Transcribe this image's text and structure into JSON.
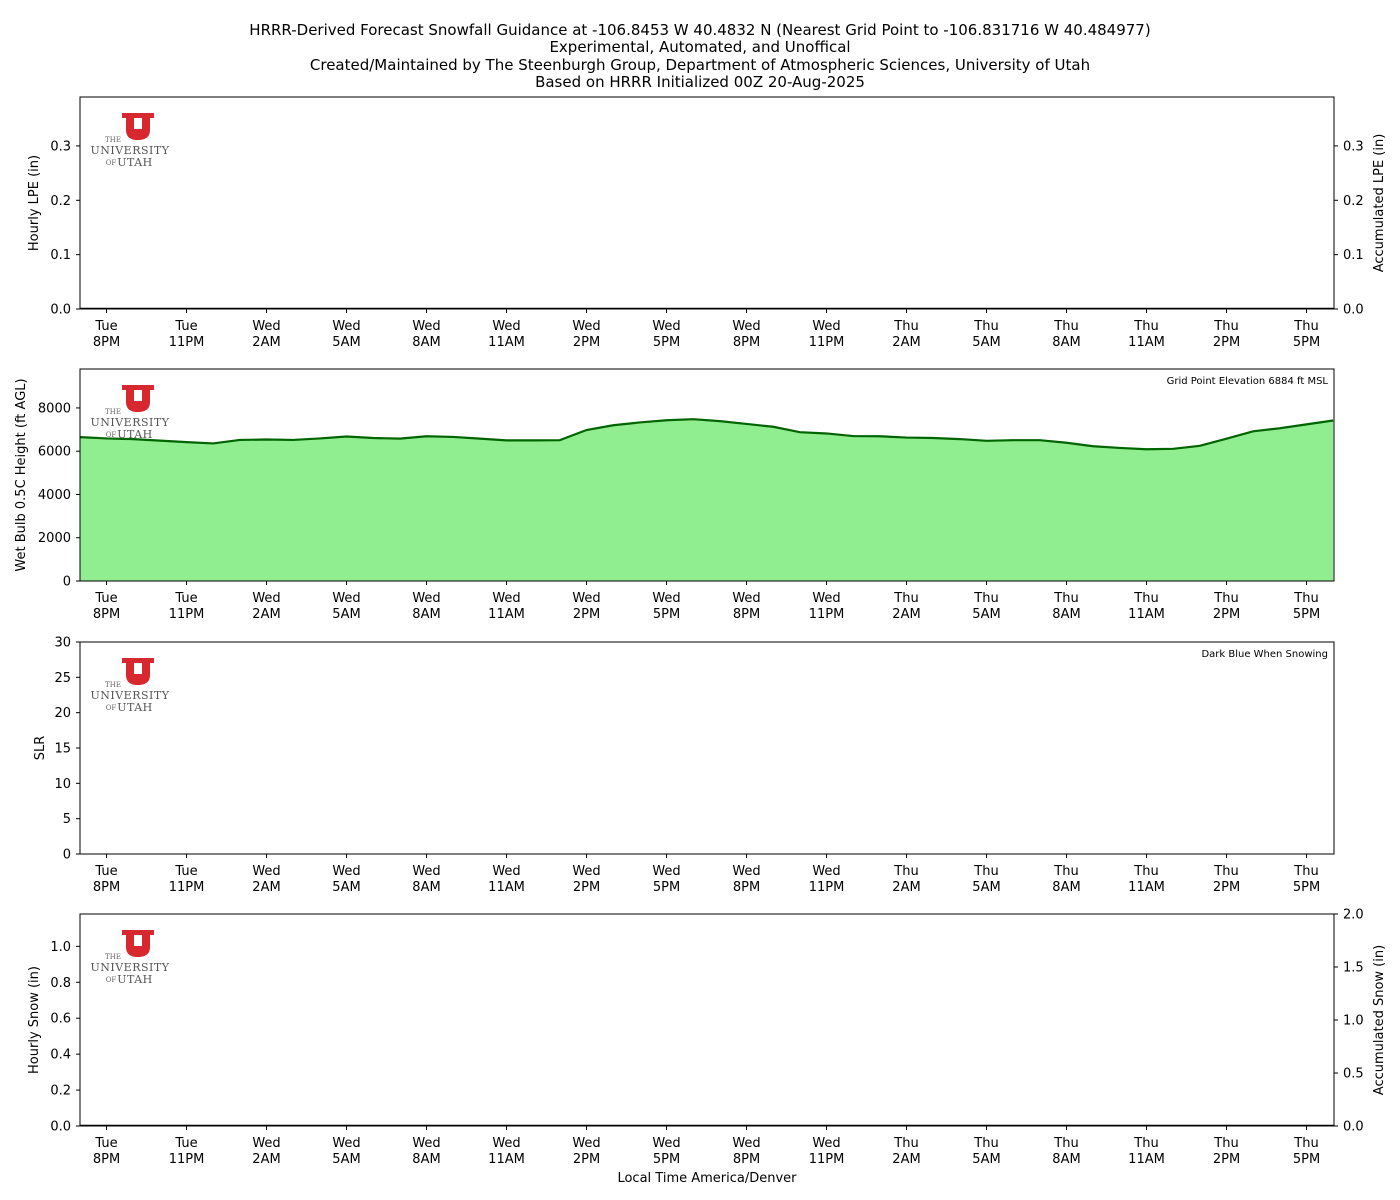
{
  "title_lines": [
    "HRRR-Derived Forecast Snowfall Guidance at -106.8453 W 40.4832 N (Nearest Grid Point to -106.831716 W 40.484977)",
    "Experimental, Automated, and Unoffical",
    "Created/Maintained by The Steenburgh Group, Department of Atmospheric Sciences, University of Utah",
    "Based on HRRR Initialized 00Z 20-Aug-2025"
  ],
  "logo": {
    "the": "THE",
    "university": "UNIVERSITY",
    "of": "OF",
    "utah": "UTAH",
    "color": "#d7282f"
  },
  "xlabel": "Local Time America/Denver",
  "x_ticks": [
    [
      "Tue",
      "8PM"
    ],
    [
      "Tue",
      "11PM"
    ],
    [
      "Wed",
      "2AM"
    ],
    [
      "Wed",
      "5AM"
    ],
    [
      "Wed",
      "8AM"
    ],
    [
      "Wed",
      "11AM"
    ],
    [
      "Wed",
      "2PM"
    ],
    [
      "Wed",
      "5PM"
    ],
    [
      "Wed",
      "8PM"
    ],
    [
      "Wed",
      "11PM"
    ],
    [
      "Thu",
      "2AM"
    ],
    [
      "Thu",
      "5AM"
    ],
    [
      "Thu",
      "8AM"
    ],
    [
      "Thu",
      "11AM"
    ],
    [
      "Thu",
      "2PM"
    ],
    [
      "Thu",
      "5PM"
    ]
  ],
  "chart_data": [
    {
      "type": "bar",
      "id": "lpe",
      "ylabel": "Hourly LPE (in)",
      "ylabel_right": "Accumulated LPE (in)",
      "ylim": [
        0,
        0.39
      ],
      "yticks": [
        0.0,
        0.1,
        0.2,
        0.3
      ],
      "yticks_right": [
        0.0,
        0.1,
        0.2,
        0.3
      ],
      "ylim_right": [
        0,
        0.39
      ],
      "hourly_values": [],
      "accumulated_values": []
    },
    {
      "type": "area",
      "id": "wetbulb",
      "ylabel": "Wet Bulb 0.5C Height (ft AGL)",
      "ylim": [
        0,
        9800
      ],
      "yticks": [
        0,
        2000,
        4000,
        6000,
        8000
      ],
      "annotation": "Grid Point Elevation 6884 ft MSL",
      "fill_color": "#90ee90",
      "line_color": "#006400",
      "x_hours": [
        -1,
        0,
        1,
        2,
        3,
        4,
        5,
        6,
        7,
        8,
        9,
        10,
        11,
        12,
        13,
        14,
        15,
        16,
        17,
        18,
        19,
        20,
        21,
        22,
        23,
        24,
        25,
        26,
        27,
        28,
        29,
        30,
        31,
        32,
        33,
        34,
        35,
        36,
        37,
        38,
        39,
        40,
        41,
        42,
        43,
        44,
        45,
        46
      ],
      "values": [
        6650,
        6590,
        6560,
        6490,
        6420,
        6360,
        6520,
        6540,
        6520,
        6590,
        6680,
        6610,
        6580,
        6690,
        6660,
        6580,
        6500,
        6500,
        6510,
        6980,
        7200,
        7330,
        7430,
        7480,
        7390,
        7260,
        7130,
        6880,
        6820,
        6700,
        6690,
        6630,
        6610,
        6560,
        6480,
        6510,
        6510,
        6390,
        6230,
        6150,
        6090,
        6110,
        6250,
        6580,
        6920,
        7060,
        7240,
        7420
      ]
    },
    {
      "type": "bar",
      "id": "slr",
      "ylabel": "SLR",
      "ylim": [
        0,
        30
      ],
      "yticks": [
        0,
        5,
        10,
        15,
        20,
        25,
        30
      ],
      "annotation": "Dark Blue When Snowing",
      "values": []
    },
    {
      "type": "bar",
      "id": "snow",
      "ylabel": "Hourly Snow (in)",
      "ylabel_right": "Accumulated Snow (in)",
      "ylim": [
        0,
        1.18
      ],
      "yticks": [
        0.0,
        0.2,
        0.4,
        0.6,
        0.8,
        1.0
      ],
      "ylim_right": [
        0,
        2.0
      ],
      "yticks_right": [
        0.0,
        0.5,
        1.0,
        1.5,
        2.0
      ],
      "hourly_values": [],
      "accumulated_values": []
    }
  ]
}
